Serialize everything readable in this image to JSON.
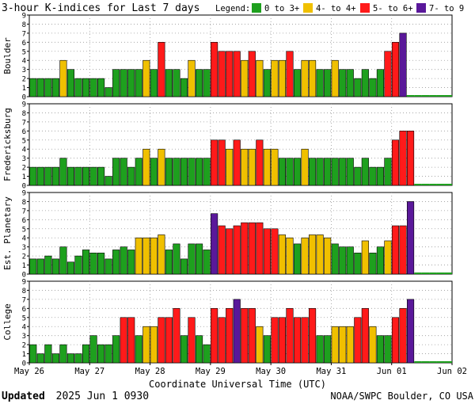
{
  "title": "3-hour K-indices for Last 7 days",
  "legend": {
    "label": "Legend:",
    "items": [
      {
        "label": "0 to 3+",
        "color": "#1ea01e"
      },
      {
        "label": "4- to 4+",
        "color": "#f0c000"
      },
      {
        "label": "5- to 6+",
        "color": "#ff1a1a"
      },
      {
        "label": "7- to 9",
        "color": "#5a189a"
      }
    ]
  },
  "colors": {
    "low": "#1ea01e",
    "active": "#f0c000",
    "storm": "#ff1a1a",
    "severe": "#5a189a",
    "grid": "#9a9a9a"
  },
  "xlabel": "Coordinate Universal Time (UTC)",
  "footer_left_bold": "Updated",
  "footer_left": "2025 Jun  1 0930",
  "footer_right": "NOAA/SWPC Boulder, CO USA",
  "chart_data": [
    {
      "type": "bar",
      "ylabel": "Boulder",
      "ylim": [
        0,
        9
      ],
      "yticks": [
        0,
        1,
        2,
        3,
        4,
        5,
        6,
        7,
        8,
        9
      ],
      "xticklabels": [
        "May 26",
        "May 27",
        "May 28",
        "May 29",
        "May 30",
        "May 31",
        "Jun 01",
        "Jun 02"
      ],
      "grid": true,
      "values": [
        2,
        2,
        2,
        2,
        4,
        3,
        2,
        2,
        2,
        2,
        1,
        3,
        3,
        3,
        3,
        4,
        3,
        6,
        3,
        3,
        2,
        4,
        3,
        3,
        6,
        5,
        5,
        5,
        4,
        5,
        4,
        3,
        4,
        4,
        5,
        3,
        4,
        4,
        3,
        3,
        4,
        3,
        3,
        2,
        3,
        2,
        3,
        5,
        6,
        7,
        0,
        0,
        0,
        0,
        0,
        0
      ]
    },
    {
      "type": "bar",
      "ylabel": "Fredericksburg",
      "ylim": [
        0,
        9
      ],
      "yticks": [
        0,
        1,
        2,
        3,
        4,
        5,
        6,
        7,
        8,
        9
      ],
      "xticklabels": [
        "May 26",
        "May 27",
        "May 28",
        "May 29",
        "May 30",
        "May 31",
        "Jun 01",
        "Jun 02"
      ],
      "grid": true,
      "values": [
        2,
        2,
        2,
        2,
        3,
        2,
        2,
        2,
        2,
        2,
        1,
        3,
        3,
        2,
        3,
        4,
        3,
        4,
        3,
        3,
        3,
        3,
        3,
        3,
        5,
        5,
        4,
        5,
        4,
        4,
        5,
        4,
        4,
        3,
        3,
        3,
        4,
        3,
        3,
        3,
        3,
        3,
        3,
        2,
        3,
        2,
        2,
        3,
        5,
        6,
        6,
        0,
        0,
        0,
        0,
        0
      ]
    },
    {
      "type": "bar",
      "ylabel": "Est. Planetary",
      "ylim": [
        0,
        9
      ],
      "yticks": [
        0,
        1,
        2,
        3,
        4,
        5,
        6,
        7,
        8,
        9
      ],
      "xticklabels": [
        "May 26",
        "May 27",
        "May 28",
        "May 29",
        "May 30",
        "May 31",
        "Jun 01",
        "Jun 02"
      ],
      "grid": true,
      "values": [
        1.67,
        1.67,
        2,
        1.67,
        3,
        1.33,
        2,
        2.67,
        2.33,
        2.33,
        1.67,
        2.67,
        3,
        2.67,
        4,
        4,
        4,
        4.33,
        2.67,
        3.33,
        1.67,
        3.33,
        3.33,
        2.67,
        6.67,
        5.33,
        5,
        5.33,
        5.67,
        5.67,
        5.67,
        5,
        5,
        4.33,
        4,
        3.33,
        4,
        4.33,
        4.33,
        4,
        3.33,
        3,
        3,
        2.33,
        3.67,
        2.33,
        3,
        3.67,
        5.33,
        5.33,
        8,
        0,
        0,
        0,
        0,
        0
      ]
    },
    {
      "type": "bar",
      "ylabel": "College",
      "ylim": [
        0,
        9
      ],
      "yticks": [
        0,
        1,
        2,
        3,
        4,
        5,
        6,
        7,
        8,
        9
      ],
      "xticklabels": [
        "May 26",
        "May 27",
        "May 28",
        "May 29",
        "May 30",
        "May 31",
        "Jun 01",
        "Jun 02"
      ],
      "grid": true,
      "values": [
        2,
        1,
        2,
        1,
        2,
        1,
        1,
        2,
        3,
        2,
        2,
        3,
        5,
        5,
        3,
        4,
        4,
        5,
        5,
        6,
        3,
        5,
        3,
        2,
        6,
        5,
        6,
        7,
        6,
        6,
        4,
        3,
        5,
        5,
        6,
        5,
        5,
        6,
        3,
        3,
        4,
        4,
        4,
        5,
        6,
        4,
        3,
        3,
        5,
        6,
        7,
        0,
        0,
        0,
        0,
        0
      ]
    }
  ]
}
